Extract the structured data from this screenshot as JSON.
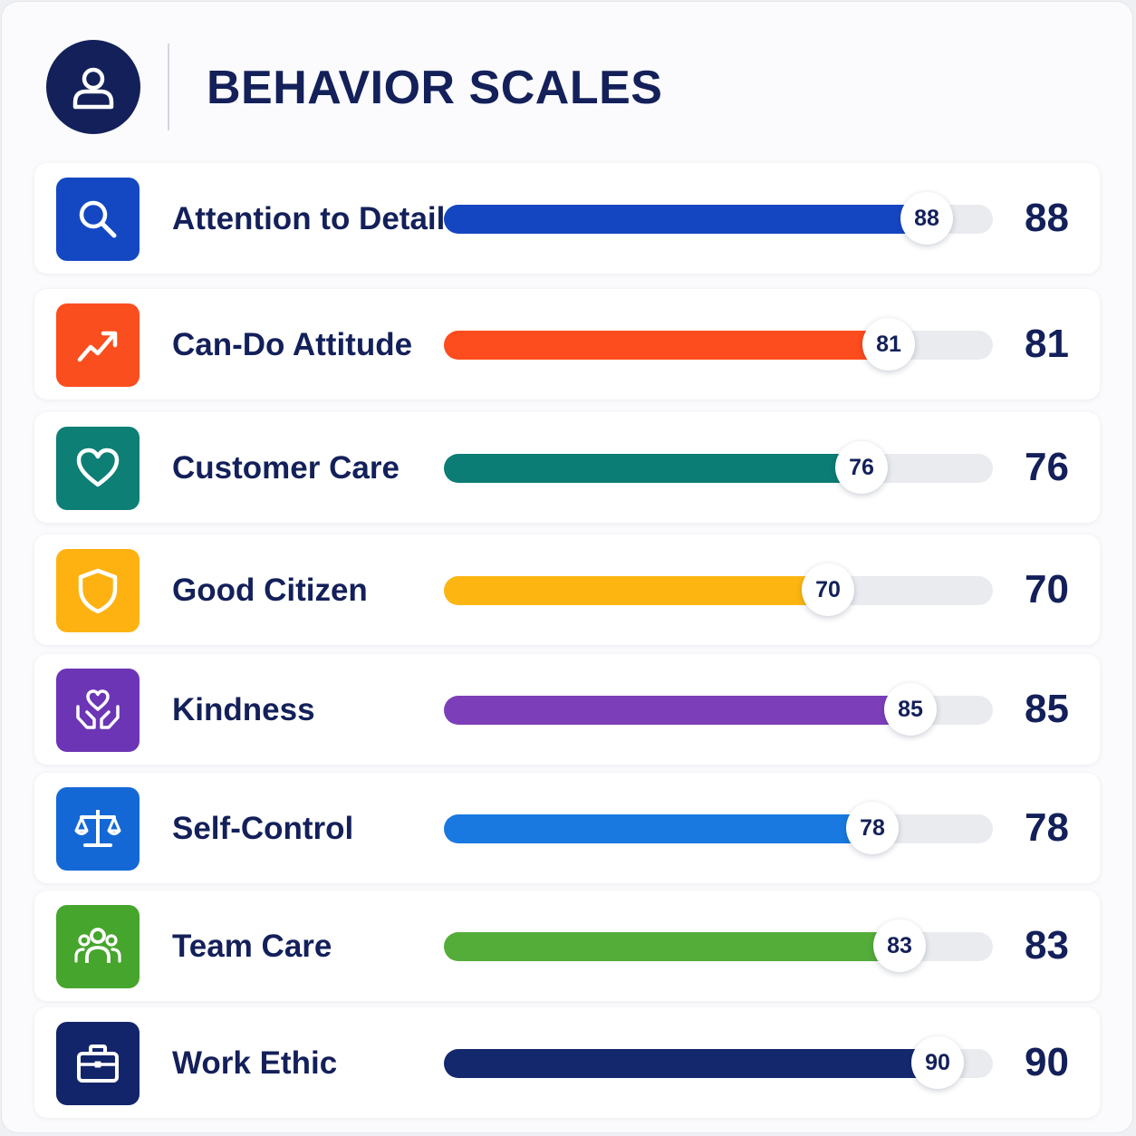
{
  "title": "BEHAVIOR SCALES",
  "header_icon": "user-icon",
  "chart_data": {
    "type": "bar",
    "orientation": "horizontal",
    "title": "BEHAVIOR SCALES",
    "xlim": [
      0,
      100
    ],
    "categories": [
      "Attention to Detail",
      "Can-Do Attitude",
      "Customer Care",
      "Good Citizen",
      "Kindness",
      "Self-Control",
      "Team Care",
      "Work Ethic"
    ],
    "values": [
      88,
      81,
      76,
      70,
      85,
      78,
      83,
      90
    ]
  },
  "rows": [
    {
      "label": "Attention to Detail",
      "value": 88,
      "value_text": "88",
      "color": "#1546c2",
      "icon": "search-icon",
      "icon_bg": "#1448c3"
    },
    {
      "label": "Can-Do Attitude",
      "value": 81,
      "value_text": "81",
      "color": "#fd4c1d",
      "icon": "trending-up-icon",
      "icon_bg": "#fb4e1e"
    },
    {
      "label": "Customer Care",
      "value": 76,
      "value_text": "76",
      "color": "#0b7d74",
      "icon": "heart-icon",
      "icon_bg": "#0d7f75"
    },
    {
      "label": "Good Citizen",
      "value": 70,
      "value_text": "70",
      "color": "#fdb611",
      "icon": "shield-icon",
      "icon_bg": "#fdb212"
    },
    {
      "label": "Kindness",
      "value": 85,
      "value_text": "85",
      "color": "#7c3fb9",
      "icon": "heart-hands-icon",
      "icon_bg": "#6c35b5"
    },
    {
      "label": "Self-Control",
      "value": 78,
      "value_text": "78",
      "color": "#1979e0",
      "icon": "balance-scale-icon",
      "icon_bg": "#1468d6"
    },
    {
      "label": "Team Care",
      "value": 83,
      "value_text": "83",
      "color": "#54ad38",
      "icon": "team-icon",
      "icon_bg": "#46a52c"
    },
    {
      "label": "Work Ethic",
      "value": 90,
      "value_text": "90",
      "color": "#14286d",
      "icon": "briefcase-icon",
      "icon_bg": "#13256a"
    }
  ]
}
